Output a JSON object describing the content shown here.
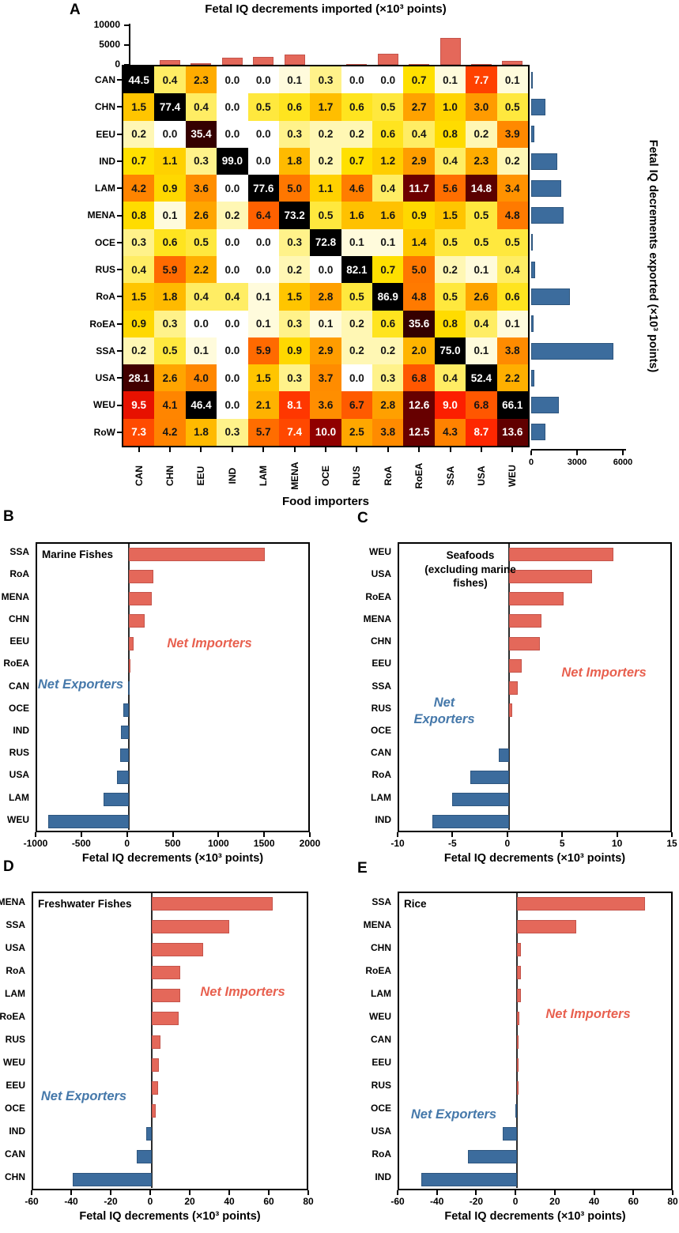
{
  "panels": {
    "a": "A",
    "b": "B",
    "c": "C",
    "d": "D",
    "e": "E"
  },
  "colors": {
    "import_bar": "#E4685A",
    "import_bar_edge": "#C4544B",
    "export_bar": "#3C6C9D",
    "export_bar_edge": "#2E567F",
    "net_importers_text": "#E8604F",
    "net_exporters_text": "#4578AA",
    "heatmap_text_light": "#ffffff",
    "heatmap_text_dark": "#151515"
  },
  "white_text_threshold": 7.0,
  "heat_scale": [
    [
      0.0,
      "#FFFFFF"
    ],
    [
      0.1,
      "#FFFBDC"
    ],
    [
      0.2,
      "#FFF7B4"
    ],
    [
      0.3,
      "#FFF28A"
    ],
    [
      0.4,
      "#FFED64"
    ],
    [
      0.5,
      "#FFE83E"
    ],
    [
      0.7,
      "#FFE000"
    ],
    [
      1.0,
      "#FFD400"
    ],
    [
      1.4,
      "#FFC800"
    ],
    [
      1.8,
      "#FFBA00"
    ],
    [
      2.3,
      "#FFAC00"
    ],
    [
      2.9,
      "#FF9D00"
    ],
    [
      3.6,
      "#FF8E00"
    ],
    [
      4.4,
      "#FF8000"
    ],
    [
      5.3,
      "#FF7200"
    ],
    [
      6.2,
      "#FF6600"
    ],
    [
      7.0,
      "#FF5200"
    ],
    [
      7.8,
      "#FF3E00"
    ],
    [
      8.6,
      "#FF2A00"
    ],
    [
      9.4,
      "#F81400"
    ],
    [
      10.0,
      "#900000"
    ],
    [
      11.5,
      "#6E0000"
    ],
    [
      13.5,
      "#620000"
    ],
    [
      16.0,
      "#540000"
    ],
    [
      22.0,
      "#470000"
    ],
    [
      30.0,
      "#400000"
    ],
    [
      38.0,
      "#300000"
    ],
    [
      44.0,
      "#000000"
    ],
    [
      100.0,
      "#000000"
    ]
  ],
  "chart_data": [
    {
      "panel": "A",
      "type": "heatmap",
      "top_title": "Fetal IQ decrements imported (×10³ points)",
      "right_title": "Fetal IQ decrements exported (×10³ points)",
      "bottom_label": "Food importers",
      "columns": [
        "CAN",
        "CHN",
        "EEU",
        "IND",
        "LAM",
        "MENA",
        "OCE",
        "RUS",
        "RoA",
        "RoEA",
        "SSA",
        "USA",
        "WEU"
      ],
      "rows": [
        "CAN",
        "CHN",
        "EEU",
        "IND",
        "LAM",
        "MENA",
        "OCE",
        "RUS",
        "RoA",
        "RoEA",
        "SSA",
        "USA",
        "WEU",
        "RoW"
      ],
      "values": [
        [
          44.5,
          0.4,
          2.3,
          0.0,
          0.0,
          0.1,
          0.3,
          0.0,
          0.0,
          0.7,
          0.1,
          7.7,
          0.1
        ],
        [
          1.5,
          77.4,
          0.4,
          0.0,
          0.5,
          0.6,
          1.7,
          0.6,
          0.5,
          2.7,
          1.0,
          3.0,
          0.5
        ],
        [
          0.2,
          0.0,
          35.4,
          0.0,
          0.0,
          0.3,
          0.2,
          0.2,
          0.6,
          0.4,
          0.8,
          0.2,
          3.9
        ],
        [
          0.7,
          1.1,
          0.3,
          99.0,
          0.0,
          1.8,
          0.2,
          0.7,
          1.2,
          2.9,
          0.4,
          2.3,
          0.2
        ],
        [
          4.2,
          0.9,
          3.6,
          0.0,
          77.6,
          5.0,
          1.1,
          4.6,
          0.4,
          11.7,
          5.6,
          14.8,
          3.4
        ],
        [
          0.8,
          0.1,
          2.6,
          0.2,
          6.4,
          73.2,
          0.5,
          1.6,
          1.6,
          0.9,
          1.5,
          0.5,
          4.8
        ],
        [
          0.3,
          0.6,
          0.5,
          0.0,
          0.0,
          0.3,
          72.8,
          0.1,
          0.1,
          1.4,
          0.5,
          0.5,
          0.5
        ],
        [
          0.4,
          5.9,
          2.2,
          0.0,
          0.0,
          0.2,
          0.0,
          82.1,
          0.7,
          5.0,
          0.2,
          0.1,
          0.4
        ],
        [
          1.5,
          1.8,
          0.4,
          0.4,
          0.1,
          1.5,
          2.8,
          0.5,
          86.9,
          4.8,
          0.5,
          2.6,
          0.6
        ],
        [
          0.9,
          0.3,
          0.0,
          0.0,
          0.1,
          0.3,
          0.1,
          0.2,
          0.6,
          35.6,
          0.8,
          0.4,
          0.1
        ],
        [
          0.2,
          0.5,
          0.1,
          0.0,
          5.9,
          0.9,
          2.9,
          0.2,
          0.2,
          2.0,
          75.0,
          0.1,
          3.8
        ],
        [
          28.1,
          2.6,
          4.0,
          0.0,
          1.5,
          0.3,
          3.7,
          0.0,
          0.3,
          6.8,
          0.4,
          52.4,
          2.2
        ],
        [
          9.5,
          4.1,
          46.4,
          0.0,
          2.1,
          8.1,
          3.6,
          6.7,
          2.8,
          12.6,
          9.0,
          6.8,
          66.1
        ],
        [
          7.3,
          4.2,
          1.8,
          0.3,
          5.7,
          7.4,
          10.0,
          2.5,
          3.8,
          12.5,
          4.3,
          8.7,
          13.6
        ]
      ],
      "marginal_top": {
        "type": "bar",
        "ylim": [
          0,
          10000
        ],
        "yticks": [
          0,
          5000,
          10000
        ],
        "values": [
          30,
          1120,
          320,
          1740,
          2000,
          2620,
          50,
          190,
          2870,
          250,
          6900,
          130,
          1100
        ]
      },
      "marginal_right": {
        "type": "bar",
        "xlim": [
          0,
          6000
        ],
        "xticks": [
          0,
          3000,
          6000
        ],
        "values": [
          30,
          940,
          220,
          1710,
          1970,
          2140,
          60,
          260,
          2520,
          180,
          5400,
          220,
          1800,
          940
        ]
      }
    },
    {
      "panel": "B",
      "type": "bar",
      "orientation": "horizontal",
      "title": "Marine Fishes",
      "xlabel": "Fetal IQ decrements (×10³ points)",
      "xlim": [
        -1000,
        2000
      ],
      "xticks": [
        -1000,
        -500,
        0,
        500,
        1000,
        1500,
        2000
      ],
      "categories": [
        "SSA",
        "RoA",
        "MENA",
        "CHN",
        "EEU",
        "RoEA",
        "CAN",
        "OCE",
        "IND",
        "RUS",
        "USA",
        "LAM",
        "WEU"
      ],
      "values": [
        1490,
        270,
        250,
        180,
        55,
        10,
        -8,
        -58,
        -82,
        -95,
        -125,
        -270,
        -875
      ],
      "importers_label": "Net Importers",
      "exporters_label": "Net Exporters"
    },
    {
      "panel": "C",
      "type": "bar",
      "orientation": "horizontal",
      "title": "Seafoods (excluding marine fishes)",
      "title_lines": [
        "Seafoods",
        "(excluding marine",
        "fishes)"
      ],
      "xlabel": "Fetal IQ decrements (×10³ points)",
      "xlim": [
        -10,
        15
      ],
      "xticks": [
        -10,
        -5,
        0,
        5,
        10,
        15
      ],
      "categories": [
        "WEU",
        "USA",
        "RoEA",
        "MENA",
        "CHN",
        "EEU",
        "SSA",
        "RUS",
        "OCE",
        "CAN",
        "RoA",
        "LAM",
        "IND"
      ],
      "values": [
        9.5,
        7.6,
        5.0,
        3.0,
        2.8,
        1.2,
        0.8,
        0.3,
        0.0,
        -0.9,
        -3.5,
        -5.2,
        -7.0
      ],
      "importers_label": "Net Importers",
      "exporters_label": "Net\nExporters"
    },
    {
      "panel": "D",
      "type": "bar",
      "orientation": "horizontal",
      "title": "Freshwater Fishes",
      "xlabel": "Fetal IQ decrements (×10³ points)",
      "xlim": [
        -60,
        80
      ],
      "xticks": [
        -60,
        -40,
        -20,
        0,
        20,
        40,
        60,
        80
      ],
      "categories": [
        "MENA",
        "SSA",
        "USA",
        "RoA",
        "LAM",
        "RoEA",
        "RUS",
        "WEU",
        "EEU",
        "OCE",
        "IND",
        "CAN",
        "CHN"
      ],
      "values": [
        61,
        39,
        26,
        14.5,
        14.5,
        13.5,
        4.3,
        3.6,
        3.3,
        2.0,
        -2.7,
        -7.8,
        -40
      ],
      "importers_label": "Net Importers",
      "exporters_label": "Net Exporters"
    },
    {
      "panel": "E",
      "type": "bar",
      "orientation": "horizontal",
      "title": "Rice",
      "xlabel": "Fetal IQ decrements (×10³ points)",
      "xlim": [
        -60,
        80
      ],
      "xticks": [
        -60,
        -40,
        -20,
        0,
        20,
        40,
        60,
        80
      ],
      "categories": [
        "SSA",
        "MENA",
        "CHN",
        "RoEA",
        "LAM",
        "WEU",
        "CAN",
        "EEU",
        "RUS",
        "OCE",
        "USA",
        "RoA",
        "IND"
      ],
      "values": [
        65,
        30,
        2.0,
        2.0,
        1.8,
        1.2,
        0.8,
        0.3,
        0.2,
        -1.0,
        -7.3,
        -25,
        -48.7
      ],
      "importers_label": "Net Importers",
      "exporters_label": "Net Exporters"
    }
  ]
}
